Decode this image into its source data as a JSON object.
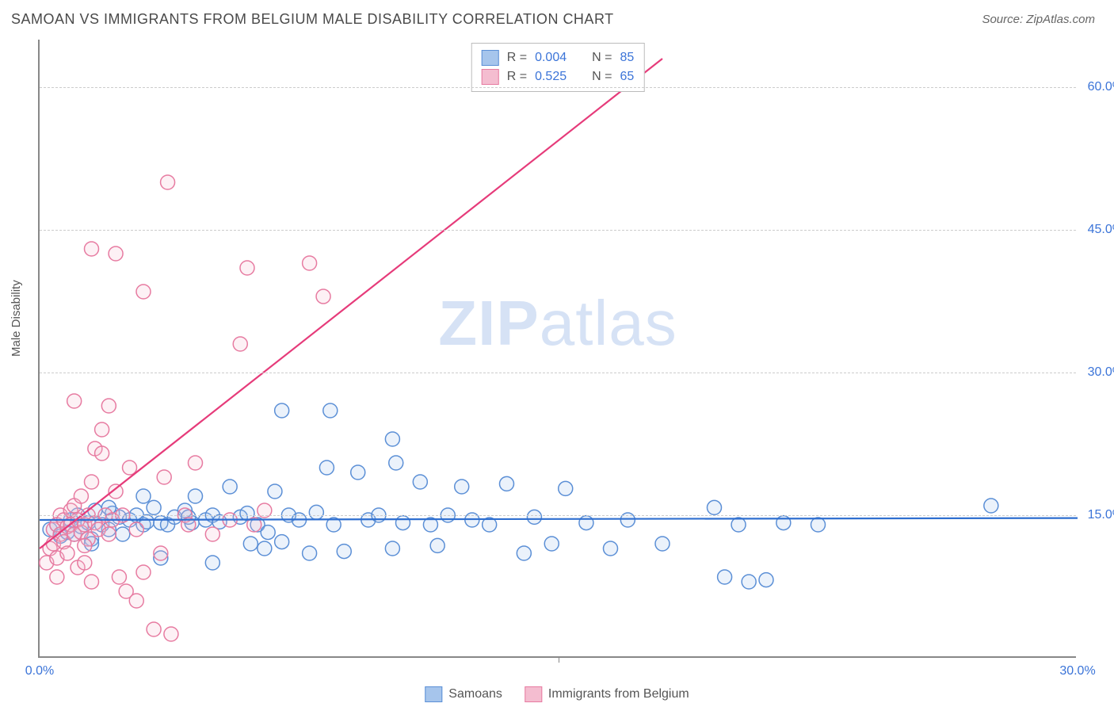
{
  "title": "SAMOAN VS IMMIGRANTS FROM BELGIUM MALE DISABILITY CORRELATION CHART",
  "source": "Source: ZipAtlas.com",
  "ylabel": "Male Disability",
  "watermark_a": "ZIP",
  "watermark_b": "atlas",
  "chart": {
    "type": "scatter",
    "xlim": [
      0,
      30
    ],
    "ylim": [
      0,
      65
    ],
    "xticks": [
      {
        "v": 0,
        "label": "0.0%"
      },
      {
        "v": 15,
        "label": ""
      },
      {
        "v": 30,
        "label": "30.0%"
      }
    ],
    "yticks": [
      {
        "v": 15,
        "label": "15.0%"
      },
      {
        "v": 30,
        "label": "30.0%"
      },
      {
        "v": 45,
        "label": "45.0%"
      },
      {
        "v": 60,
        "label": "60.0%"
      }
    ],
    "grid_color": "#cccccc",
    "background_color": "#ffffff",
    "marker_radius": 9,
    "marker_stroke_width": 1.5,
    "marker_fill_opacity": 0.22,
    "trend_line_width": 2.2,
    "series": [
      {
        "name": "Samoans",
        "color_stroke": "#5b8fd6",
        "color_fill": "#a6c5ec",
        "line_color": "#2f6fd0",
        "r": 0.004,
        "n": 85,
        "trend": {
          "x1": 0,
          "y1": 14.5,
          "x2": 30,
          "y2": 14.7
        },
        "points": [
          [
            0.3,
            13.5
          ],
          [
            0.5,
            14.0
          ],
          [
            0.6,
            12.8
          ],
          [
            0.8,
            13.2
          ],
          [
            0.9,
            14.5
          ],
          [
            1.0,
            13.0
          ],
          [
            1.1,
            15.0
          ],
          [
            1.2,
            13.8
          ],
          [
            1.4,
            14.2
          ],
          [
            1.5,
            12.5
          ],
          [
            1.6,
            15.5
          ],
          [
            1.8,
            14.0
          ],
          [
            2.0,
            13.5
          ],
          [
            2.1,
            15.2
          ],
          [
            2.3,
            14.8
          ],
          [
            2.4,
            13.0
          ],
          [
            2.6,
            14.5
          ],
          [
            2.8,
            15.0
          ],
          [
            3.0,
            14.0
          ],
          [
            3.1,
            14.3
          ],
          [
            3.3,
            15.8
          ],
          [
            3.5,
            14.2
          ],
          [
            3.5,
            10.5
          ],
          [
            3.7,
            14.0
          ],
          [
            3.9,
            14.8
          ],
          [
            4.2,
            15.5
          ],
          [
            4.4,
            14.2
          ],
          [
            4.5,
            17.0
          ],
          [
            4.8,
            14.5
          ],
          [
            5.0,
            15.0
          ],
          [
            5.2,
            14.3
          ],
          [
            5.5,
            18.0
          ],
          [
            5.8,
            14.8
          ],
          [
            6.0,
            15.2
          ],
          [
            6.1,
            12.0
          ],
          [
            6.3,
            14.0
          ],
          [
            6.5,
            11.5
          ],
          [
            6.8,
            17.5
          ],
          [
            7.0,
            12.2
          ],
          [
            7.0,
            26.0
          ],
          [
            7.2,
            15.0
          ],
          [
            7.5,
            14.5
          ],
          [
            7.8,
            11.0
          ],
          [
            8.0,
            15.3
          ],
          [
            8.3,
            20.0
          ],
          [
            8.4,
            26.0
          ],
          [
            8.5,
            14.0
          ],
          [
            8.8,
            11.2
          ],
          [
            9.2,
            19.5
          ],
          [
            9.5,
            14.5
          ],
          [
            9.8,
            15.0
          ],
          [
            10.2,
            11.5
          ],
          [
            10.2,
            23.0
          ],
          [
            10.3,
            20.5
          ],
          [
            10.5,
            14.2
          ],
          [
            11.0,
            18.5
          ],
          [
            11.3,
            14.0
          ],
          [
            11.5,
            11.8
          ],
          [
            11.8,
            15.0
          ],
          [
            12.2,
            18.0
          ],
          [
            12.5,
            14.5
          ],
          [
            13.0,
            14.0
          ],
          [
            13.5,
            18.3
          ],
          [
            14.0,
            11.0
          ],
          [
            14.3,
            14.8
          ],
          [
            14.8,
            12.0
          ],
          [
            15.2,
            17.8
          ],
          [
            15.8,
            14.2
          ],
          [
            16.5,
            11.5
          ],
          [
            17.0,
            14.5
          ],
          [
            18.0,
            12.0
          ],
          [
            19.5,
            15.8
          ],
          [
            19.8,
            8.5
          ],
          [
            20.2,
            14.0
          ],
          [
            20.5,
            8.0
          ],
          [
            21.0,
            8.2
          ],
          [
            21.5,
            14.2
          ],
          [
            22.5,
            14.0
          ],
          [
            27.5,
            16.0
          ],
          [
            5.0,
            10.0
          ],
          [
            3.0,
            17.0
          ],
          [
            2.0,
            15.8
          ],
          [
            1.5,
            12.0
          ],
          [
            4.3,
            14.8
          ],
          [
            6.6,
            13.2
          ]
        ]
      },
      {
        "name": "Immigrants from Belgium",
        "color_stroke": "#e77ba1",
        "color_fill": "#f4bdd0",
        "line_color": "#e63b7a",
        "r": 0.525,
        "n": 65,
        "trend": {
          "x1": 0,
          "y1": 11.5,
          "x2": 18,
          "y2": 63
        },
        "points": [
          [
            0.2,
            10.0
          ],
          [
            0.3,
            11.5
          ],
          [
            0.4,
            12.0
          ],
          [
            0.4,
            13.5
          ],
          [
            0.5,
            14.0
          ],
          [
            0.5,
            10.5
          ],
          [
            0.6,
            13.0
          ],
          [
            0.6,
            15.0
          ],
          [
            0.7,
            14.5
          ],
          [
            0.7,
            12.2
          ],
          [
            0.8,
            13.8
          ],
          [
            0.8,
            11.0
          ],
          [
            0.9,
            14.0
          ],
          [
            0.9,
            15.5
          ],
          [
            1.0,
            13.0
          ],
          [
            1.0,
            16.0
          ],
          [
            1.1,
            14.5
          ],
          [
            1.1,
            9.5
          ],
          [
            1.2,
            13.2
          ],
          [
            1.2,
            17.0
          ],
          [
            1.3,
            14.0
          ],
          [
            1.3,
            10.0
          ],
          [
            1.4,
            15.0
          ],
          [
            1.4,
            12.5
          ],
          [
            1.5,
            18.5
          ],
          [
            1.5,
            8.0
          ],
          [
            1.5,
            43.0
          ],
          [
            1.6,
            14.2
          ],
          [
            1.6,
            22.0
          ],
          [
            1.7,
            13.5
          ],
          [
            1.8,
            21.5
          ],
          [
            1.8,
            24.0
          ],
          [
            1.9,
            15.0
          ],
          [
            2.0,
            26.5
          ],
          [
            2.0,
            13.0
          ],
          [
            2.1,
            14.5
          ],
          [
            2.2,
            42.5
          ],
          [
            2.3,
            8.5
          ],
          [
            2.4,
            15.0
          ],
          [
            2.5,
            7.0
          ],
          [
            2.6,
            20.0
          ],
          [
            2.8,
            13.5
          ],
          [
            2.8,
            6.0
          ],
          [
            3.0,
            9.0
          ],
          [
            3.0,
            38.5
          ],
          [
            3.3,
            3.0
          ],
          [
            3.5,
            11.0
          ],
          [
            3.6,
            19.0
          ],
          [
            3.7,
            50.0
          ],
          [
            3.8,
            2.5
          ],
          [
            4.2,
            15.0
          ],
          [
            4.3,
            14.0
          ],
          [
            4.5,
            20.5
          ],
          [
            5.0,
            13.0
          ],
          [
            5.5,
            14.5
          ],
          [
            5.8,
            33.0
          ],
          [
            6.0,
            41.0
          ],
          [
            6.2,
            14.0
          ],
          [
            6.5,
            15.5
          ],
          [
            7.8,
            41.5
          ],
          [
            8.2,
            38.0
          ],
          [
            1.0,
            27.0
          ],
          [
            0.5,
            8.5
          ],
          [
            1.3,
            11.8
          ],
          [
            2.2,
            17.5
          ]
        ]
      }
    ]
  },
  "legend_bottom": [
    {
      "label": "Samoans",
      "stroke": "#5b8fd6",
      "fill": "#a6c5ec"
    },
    {
      "label": "Immigrants from Belgium",
      "stroke": "#e77ba1",
      "fill": "#f4bdd0"
    }
  ]
}
